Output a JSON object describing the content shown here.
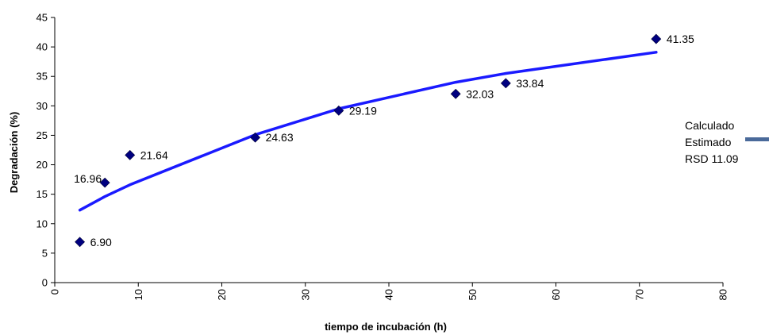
{
  "chart_data": {
    "type": "scatter",
    "title": "",
    "xlabel": "tiempo de incubación  (h)",
    "ylabel": "Degradación (%)",
    "xlim": [
      0,
      80
    ],
    "ylim": [
      0,
      45
    ],
    "x_ticks": [
      "0",
      "10",
      "20",
      "30",
      "40",
      "50",
      "60",
      "70",
      "80"
    ],
    "y_ticks": [
      "0",
      "5",
      "10",
      "15",
      "20",
      "25",
      "30",
      "35",
      "40",
      "45"
    ],
    "grid": false,
    "legend_position": "right",
    "series": [
      {
        "name": "Calculado",
        "kind": "scatter",
        "color": "#000080",
        "points": [
          {
            "x": 3,
            "y": 6.9,
            "label": "6.90"
          },
          {
            "x": 6,
            "y": 16.96,
            "label": "16.96"
          },
          {
            "x": 9,
            "y": 21.64,
            "label": "21.64"
          },
          {
            "x": 24,
            "y": 24.63,
            "label": "24.63"
          },
          {
            "x": 34,
            "y": 29.19,
            "label": "29.19"
          },
          {
            "x": 48,
            "y": 32.03,
            "label": "32.03"
          },
          {
            "x": 54,
            "y": 33.84,
            "label": "33.84"
          },
          {
            "x": 72,
            "y": 41.35,
            "label": "41.35"
          }
        ]
      },
      {
        "name": "Estimado",
        "kind": "line",
        "color": "#1a1aff",
        "points": [
          {
            "x": 3,
            "y": 12.3
          },
          {
            "x": 6,
            "y": 14.6
          },
          {
            "x": 9,
            "y": 16.6
          },
          {
            "x": 24,
            "y": 25.1
          },
          {
            "x": 34,
            "y": 29.5
          },
          {
            "x": 48,
            "y": 34.0
          },
          {
            "x": 54,
            "y": 35.5
          },
          {
            "x": 72,
            "y": 39.1
          }
        ]
      }
    ],
    "legend": {
      "lines": [
        "Calculado",
        "Estimado",
        "RSD  11.09"
      ],
      "marker_color": "#4a6a9a"
    }
  }
}
